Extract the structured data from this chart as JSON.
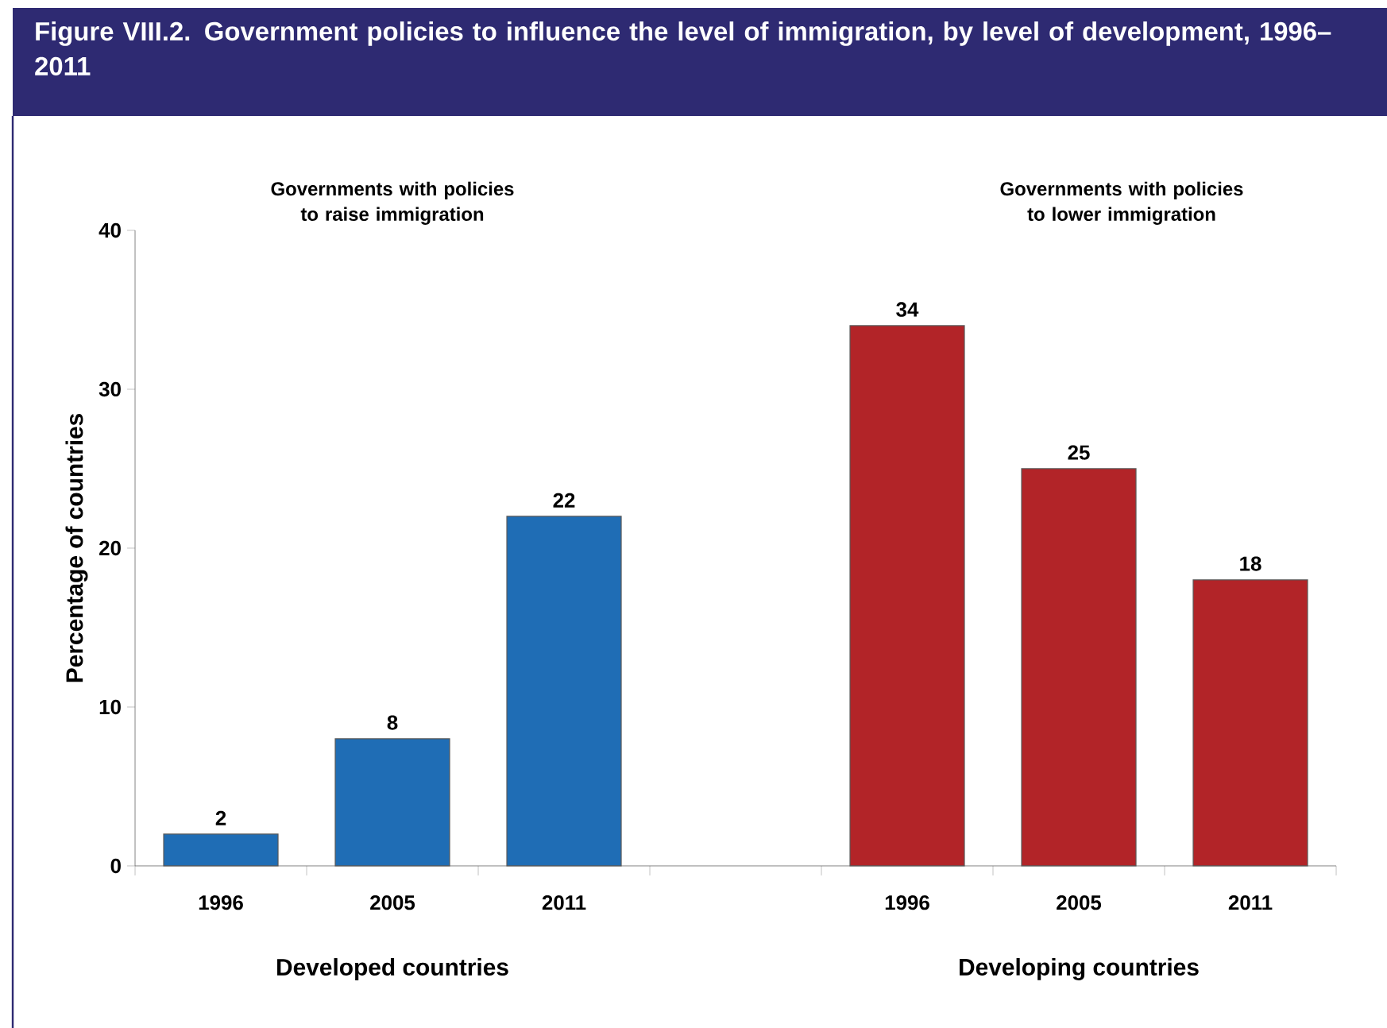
{
  "chart_data": {
    "type": "bar",
    "title": "Figure VIII.2. Government policies to influence the level of immigration, by level of development, 1996–2011",
    "ylabel": "Percentage of countries",
    "categories": [
      "1996",
      "2005",
      "2011",
      null,
      "1996",
      "2005",
      "2011"
    ],
    "values": [
      2,
      8,
      22,
      null,
      34,
      25,
      18
    ],
    "colors": [
      "#1f6db5",
      "#1f6db5",
      "#1f6db5",
      "#ffffff",
      "#b22428",
      "#b22428",
      "#b22428"
    ],
    "ylim": [
      0,
      40
    ],
    "yticks": [
      0,
      10,
      20,
      30,
      40
    ],
    "data_labels": true,
    "annotations": [
      "Governments with policies to raise immigration",
      "Governments with policies to lower immigration",
      "Developed countries",
      "Developing countries"
    ]
  }
}
